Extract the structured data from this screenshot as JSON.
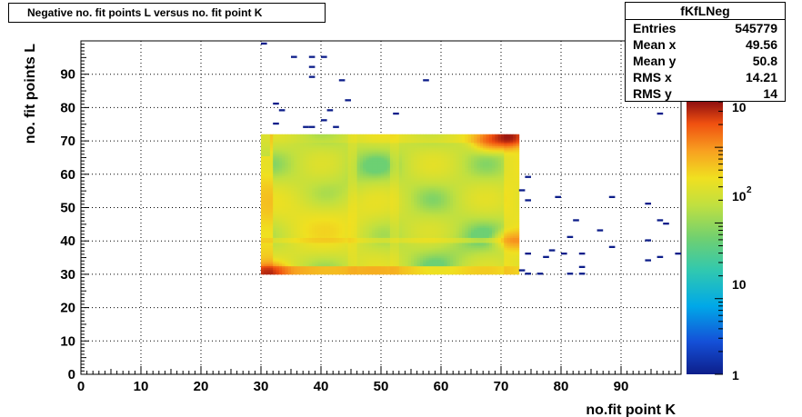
{
  "chart_data": {
    "type": "heatmap",
    "title": "Negative no. fit points L versus no. fit point K",
    "xlabel": "no.fit point K",
    "ylabel": "no. fit points  L",
    "xlim": [
      0,
      100
    ],
    "ylim": [
      0,
      100
    ],
    "x_ticks": [
      "0",
      "10",
      "20",
      "30",
      "40",
      "50",
      "60",
      "70",
      "80",
      "90"
    ],
    "y_ticks": [
      "0",
      "10",
      "20",
      "30",
      "40",
      "50",
      "60",
      "70",
      "80",
      "90"
    ],
    "grid": true,
    "z_scale": "log",
    "zlim": [
      1,
      4000
    ],
    "colorbar_labels": [
      "1",
      "10",
      "10",
      "2",
      "10"
    ],
    "dense_region": {
      "x": [
        30,
        73
      ],
      "y": [
        30,
        72
      ]
    },
    "hot_spots": [
      {
        "x": 71,
        "y": 71,
        "value": 3000
      },
      {
        "x": 31,
        "y": 30,
        "value": 2000
      },
      {
        "x": 68,
        "y": 70,
        "value": 1000
      },
      {
        "x": 72,
        "y": 40,
        "value": 600
      }
    ],
    "sparse_points": [
      {
        "x": 30,
        "y": 99
      },
      {
        "x": 35,
        "y": 95
      },
      {
        "x": 38,
        "y": 95
      },
      {
        "x": 40,
        "y": 95
      },
      {
        "x": 38,
        "y": 92
      },
      {
        "x": 38,
        "y": 89
      },
      {
        "x": 43,
        "y": 88
      },
      {
        "x": 57,
        "y": 88
      },
      {
        "x": 44,
        "y": 82
      },
      {
        "x": 32,
        "y": 81
      },
      {
        "x": 33,
        "y": 79
      },
      {
        "x": 41,
        "y": 79
      },
      {
        "x": 52,
        "y": 78
      },
      {
        "x": 96,
        "y": 78
      },
      {
        "x": 32,
        "y": 75
      },
      {
        "x": 40,
        "y": 76
      },
      {
        "x": 37,
        "y": 74
      },
      {
        "x": 38,
        "y": 74
      },
      {
        "x": 42,
        "y": 74
      },
      {
        "x": 74,
        "y": 59
      },
      {
        "x": 73,
        "y": 55
      },
      {
        "x": 74,
        "y": 52
      },
      {
        "x": 79,
        "y": 53
      },
      {
        "x": 88,
        "y": 53
      },
      {
        "x": 94,
        "y": 51
      },
      {
        "x": 82,
        "y": 46
      },
      {
        "x": 96,
        "y": 46
      },
      {
        "x": 97,
        "y": 45
      },
      {
        "x": 86,
        "y": 43
      },
      {
        "x": 81,
        "y": 41
      },
      {
        "x": 94,
        "y": 40
      },
      {
        "x": 88,
        "y": 38
      },
      {
        "x": 78,
        "y": 37
      },
      {
        "x": 74,
        "y": 36
      },
      {
        "x": 80,
        "y": 36
      },
      {
        "x": 83,
        "y": 36
      },
      {
        "x": 99,
        "y": 36
      },
      {
        "x": 77,
        "y": 35
      },
      {
        "x": 96,
        "y": 35
      },
      {
        "x": 94,
        "y": 34
      },
      {
        "x": 83,
        "y": 32
      },
      {
        "x": 73,
        "y": 31
      },
      {
        "x": 74,
        "y": 30
      },
      {
        "x": 76,
        "y": 30
      },
      {
        "x": 81,
        "y": 30
      },
      {
        "x": 83,
        "y": 30
      }
    ]
  },
  "stats": {
    "name": "fKfLNeg",
    "rows": [
      {
        "label": "Entries",
        "value": "545779"
      },
      {
        "label": "Mean x",
        "value": "49.56"
      },
      {
        "label": "Mean y",
        "value": "50.8"
      },
      {
        "label": "RMS x",
        "value": "14.21"
      },
      {
        "label": "RMS y",
        "value": "14"
      }
    ]
  }
}
